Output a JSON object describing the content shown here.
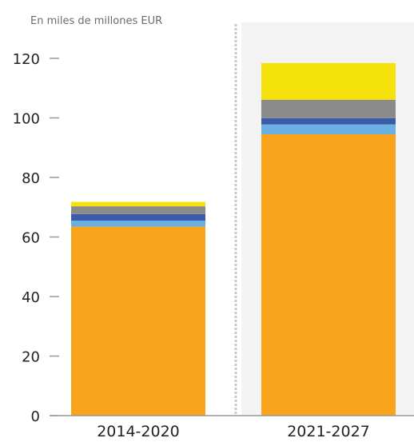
{
  "chart_data": {
    "type": "bar",
    "stacked": true,
    "unit_label": "En miles de millones EUR",
    "categories": [
      "2014-2020",
      "2021-2027"
    ],
    "ylim": [
      0,
      120
    ],
    "yticks": [
      0,
      20,
      40,
      60,
      80,
      100,
      120
    ],
    "grid": false,
    "highlighted_category": "2021-2027",
    "colors": {
      "highlight_background": "#f3f3f3",
      "divider": "#c8c8c8",
      "axis": "#999999"
    },
    "series": [
      {
        "color": "#f9a51b",
        "values": [
          63.5,
          94.5
        ]
      },
      {
        "color": "#6bb0e3",
        "values": [
          2.0,
          3.3
        ]
      },
      {
        "color": "#3a5ba8",
        "values": [
          2.2,
          2.1
        ]
      },
      {
        "color": "#8a8a8a",
        "values": [
          2.6,
          6.2
        ]
      },
      {
        "color": "#f5e10c",
        "values": [
          1.5,
          12.3
        ]
      }
    ]
  }
}
